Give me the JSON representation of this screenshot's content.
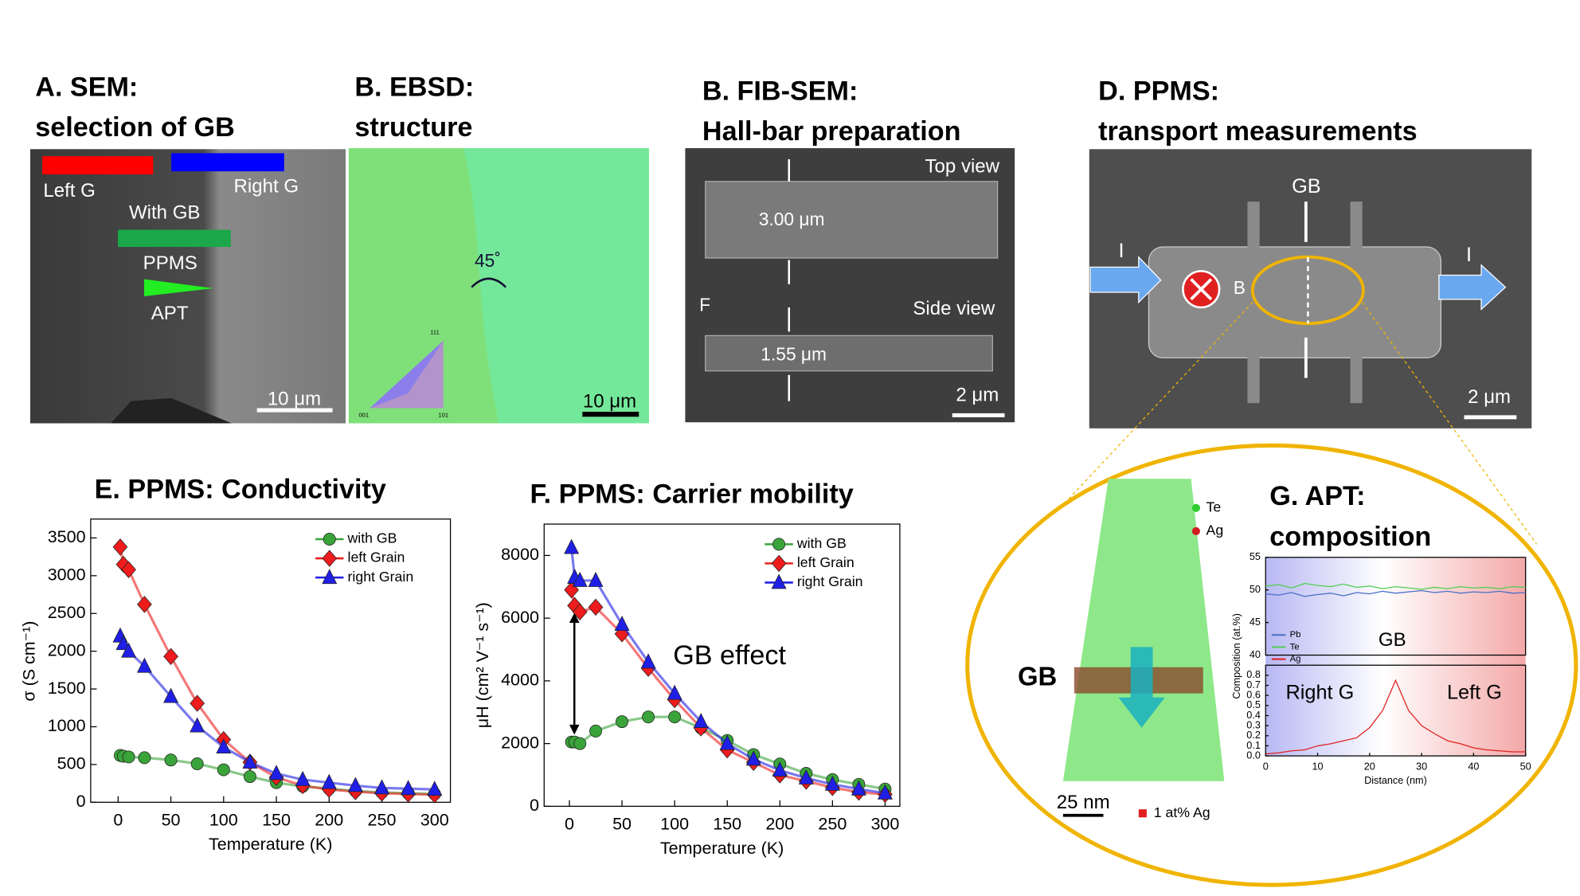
{
  "panels": [
    {
      "title": "A. SEM:",
      "subtitle": "selection of GB",
      "labels": [
        "Left G",
        "Right G",
        "With GB",
        "PPMS",
        "APT"
      ],
      "scale_bar": "10 μm"
    },
    {
      "title": "B. EBSD:",
      "subtitle": "structure",
      "labels": [
        "45˚",
        "111",
        "001",
        "101"
      ],
      "scale_bar": "10 μm"
    },
    {
      "title": "B. FIB-SEM:",
      "subtitle": "Hall-bar preparation",
      "labels": [
        "Top view",
        "3.00 μm",
        "F",
        "Side view",
        "1.55 μm"
      ],
      "scale_bar": "2 μm"
    },
    {
      "title": "D. PPMS:",
      "subtitle": "transport measurements",
      "labels": [
        "GB",
        "I",
        "I",
        "B"
      ],
      "scale_bar": "2 μm"
    },
    {
      "title": "G. APT:",
      "subtitle": "composition",
      "labels": [
        "Te",
        "Ag",
        "GB",
        "1 at% Ag",
        "GB",
        "Right G",
        "Left G"
      ],
      "scale_bar": "25 nm"
    }
  ],
  "chart_data": [
    {
      "type": "line",
      "title": "E. PPMS: Conductivity",
      "xlabel": "Temperature (K)",
      "ylabel": "σ (S cm⁻¹)",
      "legend": "upper right",
      "x": [
        2,
        5,
        10,
        25,
        50,
        75,
        100,
        125,
        150,
        175,
        200,
        225,
        250,
        275,
        300
      ],
      "xlim": [
        -26,
        315
      ],
      "ylim": [
        0,
        3750
      ],
      "xticks": [
        0,
        50,
        100,
        150,
        200,
        250,
        300
      ],
      "yticks": [
        0,
        500,
        1000,
        1500,
        2000,
        2500,
        3000,
        3500
      ],
      "series": [
        {
          "name": "with GB",
          "color": "#3aa33a",
          "marker": "circle",
          "values": [
            620,
            610,
            600,
            590,
            560,
            510,
            430,
            340,
            260,
            210,
            180,
            150,
            130,
            120,
            110
          ]
        },
        {
          "name": "left Grain",
          "color": "#ee1c1c",
          "marker": "diamond",
          "values": [
            3380,
            3150,
            3080,
            2620,
            1930,
            1310,
            830,
            530,
            330,
            220,
            170,
            140,
            120,
            110,
            100
          ]
        },
        {
          "name": "right Grain",
          "color": "#1f1fe6",
          "marker": "triangle",
          "values": [
            2200,
            2100,
            2000,
            1800,
            1400,
            1010,
            730,
            530,
            380,
            300,
            260,
            220,
            190,
            180,
            170
          ]
        }
      ]
    },
    {
      "type": "line",
      "title": "F. PPMS: Carrier mobility",
      "xlabel": "Temperature (K)",
      "ylabel": "μH (cm² V⁻¹ s⁻¹)",
      "legend": "upper right",
      "annotation": "GB effect",
      "x": [
        2,
        5,
        10,
        25,
        50,
        75,
        100,
        125,
        150,
        175,
        200,
        225,
        250,
        275,
        300
      ],
      "xlim": [
        -24,
        314
      ],
      "ylim": [
        0,
        9000
      ],
      "xticks": [
        0,
        50,
        100,
        150,
        200,
        250,
        300
      ],
      "yticks": [
        0,
        2000,
        4000,
        6000,
        8000
      ],
      "series": [
        {
          "name": "with GB",
          "color": "#3aa33a",
          "marker": "circle",
          "values": [
            2050,
            2050,
            2000,
            2400,
            2700,
            2850,
            2850,
            2500,
            2100,
            1650,
            1350,
            1050,
            850,
            700,
            550
          ]
        },
        {
          "name": "left Grain",
          "color": "#ee1c1c",
          "marker": "diamond",
          "values": [
            6900,
            6400,
            6200,
            6350,
            5500,
            4400,
            3400,
            2500,
            1800,
            1400,
            1000,
            800,
            600,
            450,
            380
          ]
        },
        {
          "name": "right Grain",
          "color": "#1f1fe6",
          "marker": "triangle",
          "values": [
            8250,
            7300,
            7200,
            7200,
            5800,
            4600,
            3600,
            2700,
            2000,
            1500,
            1150,
            900,
            700,
            550,
            420
          ]
        }
      ]
    },
    {
      "type": "line",
      "ylabel": "Composition (at.%)",
      "x": [
        0,
        2.5,
        5,
        7.5,
        10,
        12.5,
        15,
        17.5,
        20,
        22.5,
        25,
        27.5,
        30,
        32.5,
        35,
        37.5,
        40,
        42.5,
        45,
        47.5,
        50
      ],
      "xlim": [
        0,
        50
      ],
      "ylim": [
        40,
        55
      ],
      "yticks": [
        40,
        45,
        50,
        55
      ],
      "series": [
        {
          "name": "Pb",
          "color": "#4a6fc8",
          "values": [
            49.4,
            49.2,
            49.6,
            49.0,
            49.3,
            49.5,
            49.1,
            49.6,
            49.4,
            49.8,
            49.5,
            49.7,
            49.9,
            49.6,
            49.8,
            49.5,
            49.7,
            49.6,
            49.8,
            49.5,
            49.6
          ]
        },
        {
          "name": "Te",
          "color": "#4fcf4f",
          "values": [
            50.6,
            50.8,
            50.3,
            51.0,
            50.7,
            50.5,
            50.9,
            50.4,
            50.6,
            50.2,
            50.5,
            50.3,
            50.1,
            50.4,
            50.2,
            50.5,
            50.3,
            50.4,
            50.2,
            50.5,
            50.4
          ]
        }
      ]
    },
    {
      "type": "line",
      "xlabel": "Distance (nm)",
      "x": [
        0,
        2.5,
        5,
        7.5,
        10,
        12.5,
        15,
        17.5,
        20,
        22.5,
        25,
        27.5,
        30,
        32.5,
        35,
        37.5,
        40,
        42.5,
        45,
        47.5,
        50
      ],
      "xlim": [
        0,
        50
      ],
      "xticks": [
        0,
        10,
        20,
        30,
        40,
        50
      ],
      "ylim": [
        0,
        0.9
      ],
      "yticks": [
        {
          "value": 0,
          "label": "0.0"
        },
        0.1,
        0.2,
        0.3,
        0.4,
        0.5,
        0.6,
        0.7,
        0.8
      ],
      "series": [
        {
          "name": "Ag",
          "color": "#e02020",
          "values": [
            0.02,
            0.03,
            0.05,
            0.06,
            0.1,
            0.12,
            0.15,
            0.18,
            0.28,
            0.45,
            0.75,
            0.45,
            0.3,
            0.22,
            0.15,
            0.12,
            0.08,
            0.06,
            0.05,
            0.04,
            0.04
          ]
        }
      ]
    }
  ]
}
